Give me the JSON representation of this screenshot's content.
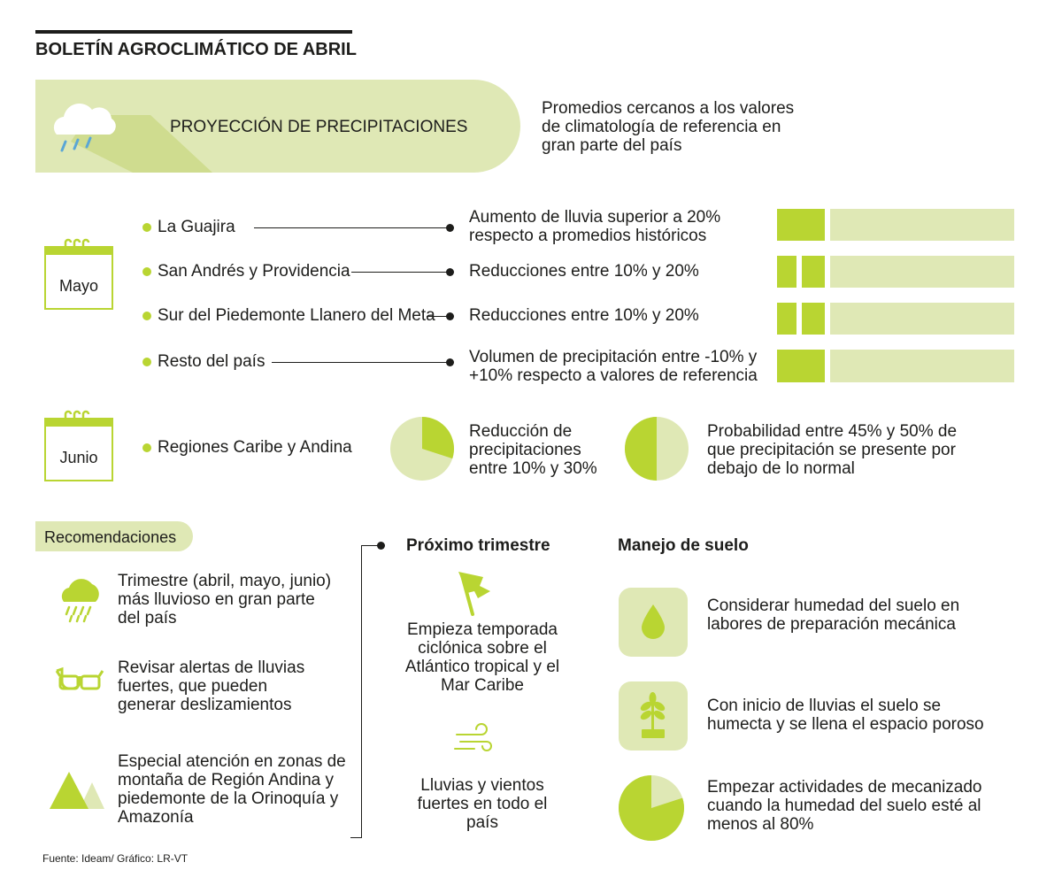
{
  "title": "BOLETÍN AGROCLIMÁTICO DE ABRIL",
  "banner": {
    "label": "PROYECCIÓN DE PRECIPITACIONES",
    "description": "Promedios cercanos a los valores de climatología de referencia en gran parte del país"
  },
  "mayo": {
    "month": "Mayo",
    "rows": [
      {
        "region": "La Guajira",
        "detail": "Aumento de lluvia superior a 20% respecto a promedios históricos"
      },
      {
        "region": "San Andrés y Providencia",
        "detail": "Reducciones entre 10% y 20%"
      },
      {
        "region": "Sur del Piedemonte Llanero del Meta",
        "detail": "Reducciones entre 10% y 20%"
      },
      {
        "region": "Resto del país",
        "detail": "Volumen de precipitación entre -10% y +10% respecto a valores de referencia"
      }
    ]
  },
  "junio": {
    "month": "Junio",
    "region": "Regiones Caribe y Andina",
    "pie1_text": "Reducción de precipitaciones entre 10% y 30%",
    "pie1_fraction": 0.3,
    "pie2_text": "Probabilidad entre 45% y 50% de que precipitación se presente por debajo de lo normal",
    "pie2_fraction": 0.5
  },
  "recomendaciones": {
    "label": "Recomendaciones",
    "items": [
      {
        "icon": "rain-cloud-icon",
        "text": "Trimestre (abril, mayo, junio) más lluvioso en gran parte del país"
      },
      {
        "icon": "glasses-icon",
        "text": "Revisar alertas de lluvias fuertes, que pueden generar deslizamientos"
      },
      {
        "icon": "mountains-icon",
        "text": "Especial atención en zonas de montaña de Región Andina y piedemonte de la Orinoquía y Amazonía"
      }
    ]
  },
  "proximo": {
    "title": "Próximo trimestre",
    "items": [
      {
        "icon": "storm-flag-icon",
        "text": "Empieza temporada ciclónica sobre el Atlántico tropical y el Mar Caribe"
      },
      {
        "icon": "wind-icon",
        "text": "Lluvias y vientos fuertes en todo el país"
      }
    ]
  },
  "manejo": {
    "title": "Manejo de suelo",
    "items": [
      {
        "icon": "water-drop-icon",
        "text": "Considerar humedad del suelo en labores de preparación mecánica"
      },
      {
        "icon": "plant-icon",
        "text": "Con inicio de lluvias el suelo se humecta y se llena el espacio poroso"
      },
      {
        "icon": "pie-80-icon",
        "text": "Empezar actividades de mecanizado cuando la humedad del suelo esté al menos al 80%",
        "fraction": 0.8
      }
    ]
  },
  "source": "Fuente: Ideam/ Gráfico: LR-VT",
  "colors": {
    "accent": "#b9d532",
    "pale": "#dfe8b5",
    "text": "#1d1d1b"
  }
}
